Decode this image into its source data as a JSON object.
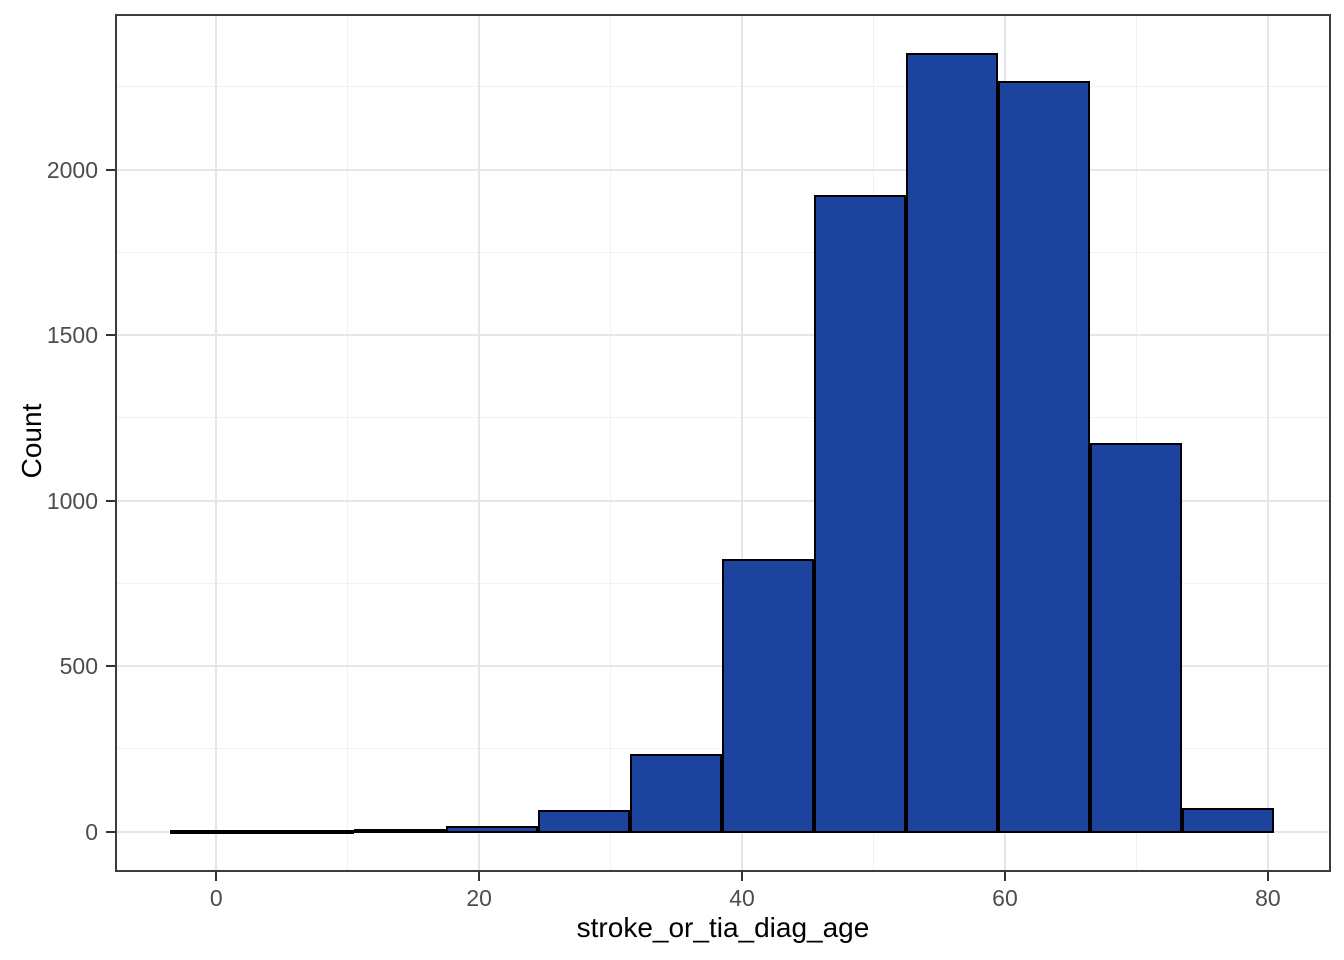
{
  "figure": {
    "background": "#FFFFFF"
  },
  "chart_data": {
    "type": "bar",
    "subtype": "histogram",
    "title": "",
    "xlabel": "stroke_or_tia_diag_age",
    "ylabel": "Count",
    "bins": [
      {
        "x0": -3.5,
        "x1": 3.5,
        "count": 1
      },
      {
        "x0": 3.5,
        "x1": 10.5,
        "count": 3
      },
      {
        "x0": 10.5,
        "x1": 17.5,
        "count": 5
      },
      {
        "x0": 17.5,
        "x1": 24.5,
        "count": 15
      },
      {
        "x0": 24.5,
        "x1": 31.5,
        "count": 62
      },
      {
        "x0": 31.5,
        "x1": 38.5,
        "count": 230
      },
      {
        "x0": 38.5,
        "x1": 45.5,
        "count": 820
      },
      {
        "x0": 45.5,
        "x1": 52.5,
        "count": 1920
      },
      {
        "x0": 52.5,
        "x1": 59.5,
        "count": 2350
      },
      {
        "x0": 59.5,
        "x1": 66.5,
        "count": 2265
      },
      {
        "x0": 66.5,
        "x1": 73.5,
        "count": 1170
      },
      {
        "x0": 73.5,
        "x1": 80.5,
        "count": 68
      }
    ],
    "x_ticks": [
      0,
      20,
      40,
      60,
      80
    ],
    "x_minor_ticks": [
      10,
      30,
      50,
      70
    ],
    "y_ticks": [
      0,
      500,
      1000,
      1500,
      2000
    ],
    "y_minor_ticks": [
      250,
      750,
      1250,
      1750,
      2250
    ],
    "xlim": [
      -7.7,
      84.8
    ],
    "ylim": [
      -122,
      2470
    ],
    "grid": "on",
    "legend": "none",
    "colors": {
      "bar_fill": "#1C449E",
      "bar_stroke": "#000000",
      "grid_major": "#E6E6E6",
      "grid_minor": "#F1F1F1",
      "panel_border": "#3C3C3C",
      "tick_mark": "#333333",
      "tick_label": "#4D4D4D",
      "axis_title": "#000000"
    }
  }
}
